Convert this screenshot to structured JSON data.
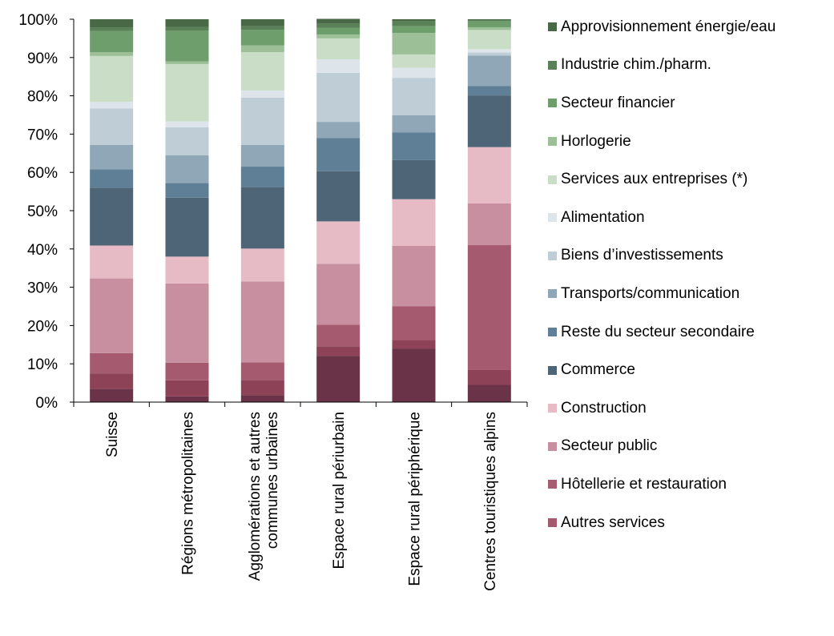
{
  "chart_data": {
    "type": "bar",
    "stacked": true,
    "percent": true,
    "categories": [
      "Suisse",
      "Régions métropolitaines",
      "Agglomérations et autres communes urbaines",
      "Espace rural périurbain",
      "Espace rural périphérique",
      "Centres touristiques alpins"
    ],
    "category_lines": [
      [
        "Suisse"
      ],
      [
        "Régions métropolitaines"
      ],
      [
        "Agglomérations et autres",
        "communes urbaines"
      ],
      [
        "Espace rural périurbain"
      ],
      [
        "Espace rural périphérique"
      ],
      [
        "Centres touristiques alpins"
      ]
    ],
    "yticks": [
      "0%",
      "10%",
      "20%",
      "30%",
      "40%",
      "50%",
      "60%",
      "70%",
      "80%",
      "90%",
      "100%"
    ],
    "ylim": [
      0,
      100
    ],
    "grid": false,
    "legend_position": "right",
    "series": [
      {
        "color": "#6b3347",
        "values": [
          3.5,
          1.5,
          1.8,
          12.1,
          14.0,
          4.5
        ]
      },
      {
        "color": "#8e4258",
        "values": [
          4.0,
          4.2,
          4.0,
          2.5,
          2.2,
          4.0
        ]
      },
      {
        "name": "Autres services",
        "color": "#a65a70",
        "values": [
          5.3,
          4.6,
          4.6,
          5.6,
          8.8,
          32.5
        ]
      },
      {
        "name": "Hôtellerie et restauration",
        "color": "#a85c72",
        "values": [
          0,
          0,
          0,
          0,
          0,
          0
        ]
      },
      {
        "name": "Secteur public",
        "color": "#c78f9f",
        "values": [
          19.5,
          20.7,
          21.1,
          15.9,
          15.8,
          10.9
        ]
      },
      {
        "name": "Construction",
        "color": "#e6bbc6",
        "values": [
          8.6,
          7.0,
          8.6,
          11.1,
          12.2,
          14.7
        ]
      },
      {
        "name": "Commerce",
        "color": "#4d6577",
        "values": [
          15.1,
          15.4,
          16.1,
          13.1,
          10.2,
          13.5
        ]
      },
      {
        "name": "Reste du secteur secondaire",
        "color": "#5f7f96",
        "values": [
          4.8,
          3.8,
          5.3,
          8.7,
          7.2,
          2.5
        ]
      },
      {
        "name": "Transports/communication",
        "color": "#8fa7b6",
        "values": [
          6.4,
          7.3,
          5.7,
          4.2,
          4.5,
          7.9
        ]
      },
      {
        "name": "Biens d’investissements",
        "color": "#bfcdd7",
        "values": [
          9.5,
          7.3,
          12.3,
          12.8,
          9.8,
          0.8
        ]
      },
      {
        "name": "Alimentation",
        "color": "#dde4ea",
        "values": [
          1.7,
          1.5,
          1.9,
          3.5,
          2.6,
          0.9
        ]
      },
      {
        "name": "Services aux entreprises (*)",
        "color": "#c9ddc7",
        "values": [
          12.0,
          15.0,
          10.0,
          5.5,
          3.5,
          5.0
        ]
      },
      {
        "name": "Horlogerie",
        "color": "#9cbf98",
        "values": [
          1.0,
          0.7,
          1.8,
          1.0,
          5.6,
          0.7
        ]
      },
      {
        "name": "Secteur financier",
        "color": "#6e9e6c",
        "values": [
          5.5,
          8.0,
          4.0,
          1.8,
          1.8,
          1.6
        ]
      },
      {
        "name": "Industrie chim./pharm.",
        "color": "#5a8058",
        "values": [
          1.0,
          1.0,
          1.0,
          1.0,
          1.3,
          0.3
        ]
      },
      {
        "name": "Approvisionnement énergie/eau",
        "color": "#486846",
        "values": [
          2.1,
          2.0,
          1.8,
          1.3,
          0.5,
          0.2
        ]
      }
    ],
    "legend": [
      {
        "label": "Approvisionnement énergie/eau",
        "color": "#486846"
      },
      {
        "label": "Industrie chim./pharm.",
        "color": "#5a8058"
      },
      {
        "label": "Secteur financier",
        "color": "#6e9e6c"
      },
      {
        "label": "Horlogerie",
        "color": "#9cbf98"
      },
      {
        "label": "Services aux entreprises (*)",
        "color": "#c9ddc7"
      },
      {
        "label": "Alimentation",
        "color": "#dde4ea"
      },
      {
        "label": "Biens d’investissements",
        "color": "#bfcdd7"
      },
      {
        "label": "Transports/communication",
        "color": "#8fa7b6"
      },
      {
        "label": "Reste du secteur secondaire",
        "color": "#5f7f96"
      },
      {
        "label": "Commerce",
        "color": "#4d6577"
      },
      {
        "label": "Construction",
        "color": "#e6bbc6"
      },
      {
        "label": "Secteur public",
        "color": "#c78f9f"
      },
      {
        "label": "Hôtellerie et restauration",
        "color": "#a85c72"
      },
      {
        "label": "Autres services",
        "color": "#a65a70"
      }
    ]
  }
}
